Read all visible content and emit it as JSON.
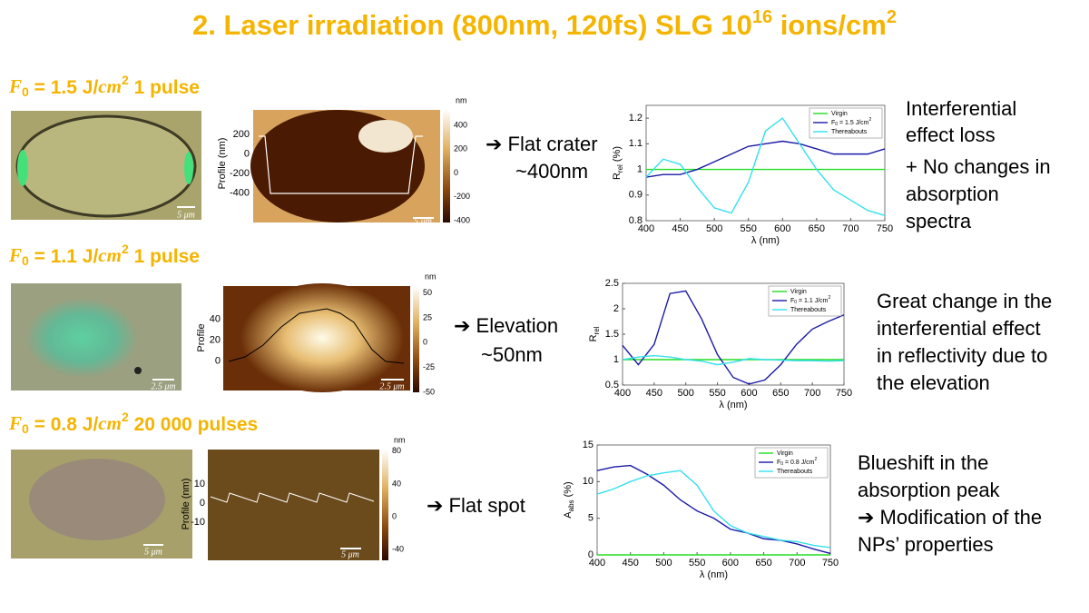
{
  "title": {
    "main": "2. Laser irradiation (800nm, 120fs) SLG 10",
    "exp": "16",
    "rest": " ions/cm",
    "exp2": "2"
  },
  "sections": [
    {
      "heading": {
        "symbol": "F",
        "sub": "0",
        "text": " = 1.5 J/",
        "unit": "cm",
        "sup": "2",
        "pulses": " 1 pulse"
      },
      "micrograph_scale": "5 μm",
      "afm": {
        "axis_label": "Profile (nm)",
        "axis_lim": [
          -700,
          450
        ],
        "axis_ticks": [
          200,
          0,
          -200,
          -400
        ],
        "colorbar_unit": "nm",
        "colorbar_lim": [
          -415,
          530
        ],
        "colorbar_ticks": [
          400,
          200,
          0,
          -200,
          -400
        ],
        "scale": "5 μm"
      },
      "result": [
        "➔ Flat crater",
        "~400nm"
      ],
      "description": [
        "Interferential",
        "effect loss",
        "+ No changes in",
        "absorption",
        "spectra"
      ]
    },
    {
      "heading": {
        "symbol": "F",
        "sub": "0",
        "text": " = 1.1 J/",
        "unit": "cm",
        "sup": "2",
        "pulses": " 1 pulse"
      },
      "micrograph_scale": "2.5 μm",
      "afm": {
        "axis_label": "Profile",
        "axis_lim": [
          -28,
          72
        ],
        "axis_ticks": [
          40,
          20,
          0
        ],
        "colorbar_unit": "nm",
        "colorbar_lim": [
          -50,
          57
        ],
        "colorbar_ticks": [
          50,
          25,
          0,
          -25,
          -50
        ],
        "scale": "2.5 μm"
      },
      "result": [
        "➔ Elevation",
        "~50nm"
      ],
      "description": [
        "Great change in the",
        "interferential effect",
        "in reflectivity due to",
        "the elevation"
      ]
    },
    {
      "heading": {
        "symbol": "F",
        "sub": "0",
        "text": " = 0.8 J/",
        "unit": "cm",
        "sup": "2",
        "pulses": " 20 000 pulses"
      },
      "micrograph_scale": "5 μm",
      "afm": {
        "axis_label": "Profile (nm)",
        "axis_lim": [
          -30,
          28
        ],
        "axis_ticks": [
          10,
          0,
          -10
        ],
        "colorbar_unit": "nm",
        "colorbar_lim": [
          -53,
          82
        ],
        "colorbar_ticks": [
          80,
          40,
          0,
          -40
        ],
        "scale": "5 μm"
      },
      "result": [
        "➔ Flat spot"
      ],
      "description": [
        "Blueshift in the",
        "absorption peak",
        "➔ Modification of the",
        "NPs’ properties"
      ]
    }
  ],
  "chart_data": [
    {
      "type": "line",
      "ylabel": "R",
      "ylabel_sub": "rel",
      "ylabel_rest": " (%)",
      "xlabel": "λ (nm)",
      "x": [
        400,
        425,
        450,
        475,
        500,
        525,
        550,
        575,
        600,
        625,
        650,
        675,
        700,
        725,
        750
      ],
      "xlim": [
        400,
        750
      ],
      "xticks": [
        400,
        450,
        500,
        550,
        600,
        650,
        700,
        750
      ],
      "ylim": [
        0.8,
        1.25
      ],
      "yticks": [
        0.8,
        0.9,
        1,
        1.1,
        1.2
      ],
      "series": [
        {
          "name": "Virgin",
          "color": "#22dd22",
          "values": [
            1,
            1,
            1,
            1,
            1,
            1,
            1,
            1,
            1,
            1,
            1,
            1,
            1,
            1,
            1
          ]
        },
        {
          "name": "F",
          "name_sub": "0",
          "name_rest": " = 1.5 J/cm",
          "name_sup": "2",
          "color": "#1a1aa8",
          "values": [
            0.97,
            0.98,
            0.98,
            1.0,
            1.03,
            1.06,
            1.09,
            1.1,
            1.11,
            1.1,
            1.08,
            1.06,
            1.06,
            1.06,
            1.08
          ]
        },
        {
          "name": "Thereabouts",
          "color": "#33e0ee",
          "values": [
            0.97,
            1.04,
            1.02,
            0.93,
            0.85,
            0.83,
            0.95,
            1.15,
            1.2,
            1.1,
            1.0,
            0.92,
            0.88,
            0.84,
            0.82
          ]
        }
      ]
    },
    {
      "type": "line",
      "ylabel": "R",
      "ylabel_sub": "rel",
      "xlabel": "λ (nm)",
      "x": [
        400,
        425,
        450,
        475,
        500,
        525,
        550,
        575,
        600,
        625,
        650,
        675,
        700,
        725,
        750
      ],
      "xlim": [
        400,
        750
      ],
      "xticks": [
        400,
        450,
        500,
        550,
        600,
        650,
        700,
        750
      ],
      "ylim": [
        0.5,
        2.5
      ],
      "yticks": [
        0.5,
        1,
        1.5,
        2,
        2.5
      ],
      "series": [
        {
          "name": "Virgin",
          "color": "#22dd22",
          "values": [
            1,
            1,
            1,
            1,
            1,
            1,
            1,
            1,
            1,
            1,
            1,
            1,
            1,
            1,
            1
          ]
        },
        {
          "name": "F",
          "name_sub": "0",
          "name_rest": " = 1.1 J/cm",
          "name_sup": "2",
          "color": "#1a1aa8",
          "values": [
            1.28,
            0.9,
            1.3,
            2.3,
            2.35,
            1.8,
            1.1,
            0.65,
            0.52,
            0.6,
            0.9,
            1.3,
            1.6,
            1.75,
            1.88
          ]
        },
        {
          "name": "Thereabouts",
          "color": "#33e0ee",
          "values": [
            1.0,
            1.05,
            1.08,
            1.05,
            1.0,
            0.97,
            0.9,
            0.95,
            1.02,
            1.0,
            0.99,
            0.98,
            0.98,
            0.97,
            0.98
          ]
        }
      ]
    },
    {
      "type": "line",
      "ylabel": "A",
      "ylabel_sub": "abs",
      "ylabel_rest": " (%)",
      "xlabel": "λ (nm)",
      "x": [
        400,
        425,
        450,
        475,
        500,
        525,
        550,
        575,
        600,
        625,
        650,
        675,
        700,
        725,
        750
      ],
      "xlim": [
        400,
        750
      ],
      "xticks": [
        400,
        450,
        500,
        550,
        600,
        650,
        700,
        750
      ],
      "ylim": [
        0,
        15
      ],
      "yticks": [
        0,
        5,
        10,
        15
      ],
      "series": [
        {
          "name": "Virgin",
          "color": "#22dd22",
          "values": [
            0,
            0,
            0,
            0,
            0,
            0,
            0,
            0,
            0,
            0,
            0,
            0,
            0,
            0,
            0
          ]
        },
        {
          "name": "F",
          "name_sub": "0",
          "name_rest": " = 0.8 J/cm",
          "name_sup": "2",
          "color": "#1a1aa8",
          "values": [
            11.5,
            12,
            12.2,
            11,
            9.5,
            7.5,
            6,
            5,
            3.5,
            3,
            2.2,
            2,
            1.5,
            0.8,
            0.2
          ]
        },
        {
          "name": "Thereabouts",
          "color": "#33e0ee",
          "values": [
            8.3,
            9,
            10,
            10.8,
            11.2,
            11.5,
            9.5,
            6,
            4,
            3,
            2.5,
            2,
            1.8,
            1.3,
            1
          ]
        }
      ]
    }
  ]
}
